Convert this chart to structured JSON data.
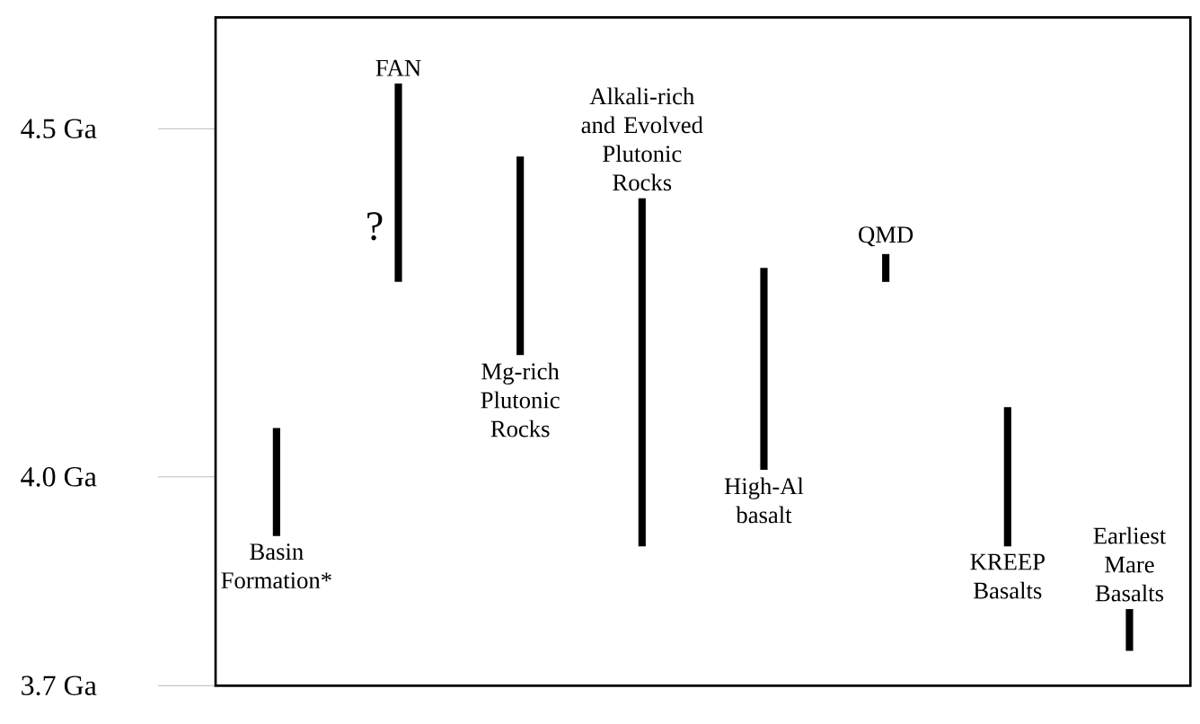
{
  "chart_data": {
    "type": "bar",
    "categories": [
      "Basin Formation*",
      "FAN",
      "Mg-rich Plutonic Rocks",
      "Alkali-rich and Evolved Plutonic Rocks",
      "High-Al basalt",
      "QMD",
      "KREEP Basalts",
      "Earliest Mare Basalts"
    ],
    "base": [
      3.915,
      4.28,
      4.175,
      3.9,
      4.01,
      4.28,
      3.9,
      3.75
    ],
    "values": [
      0.155,
      0.285,
      0.285,
      0.5,
      0.29,
      0.04,
      0.2,
      0.06
    ],
    "color": "#000000",
    "ylim": [
      3.7,
      4.66
    ],
    "yticks": [
      {
        "value": 3.7,
        "label": "3.7 Ga"
      },
      {
        "value": 4.0,
        "label": "4.0 Ga"
      },
      {
        "value": 4.5,
        "label": "4.5 Ga"
      }
    ],
    "annotations": [
      {
        "text": "?",
        "x": "FAN",
        "y": 4.36
      }
    ]
  }
}
